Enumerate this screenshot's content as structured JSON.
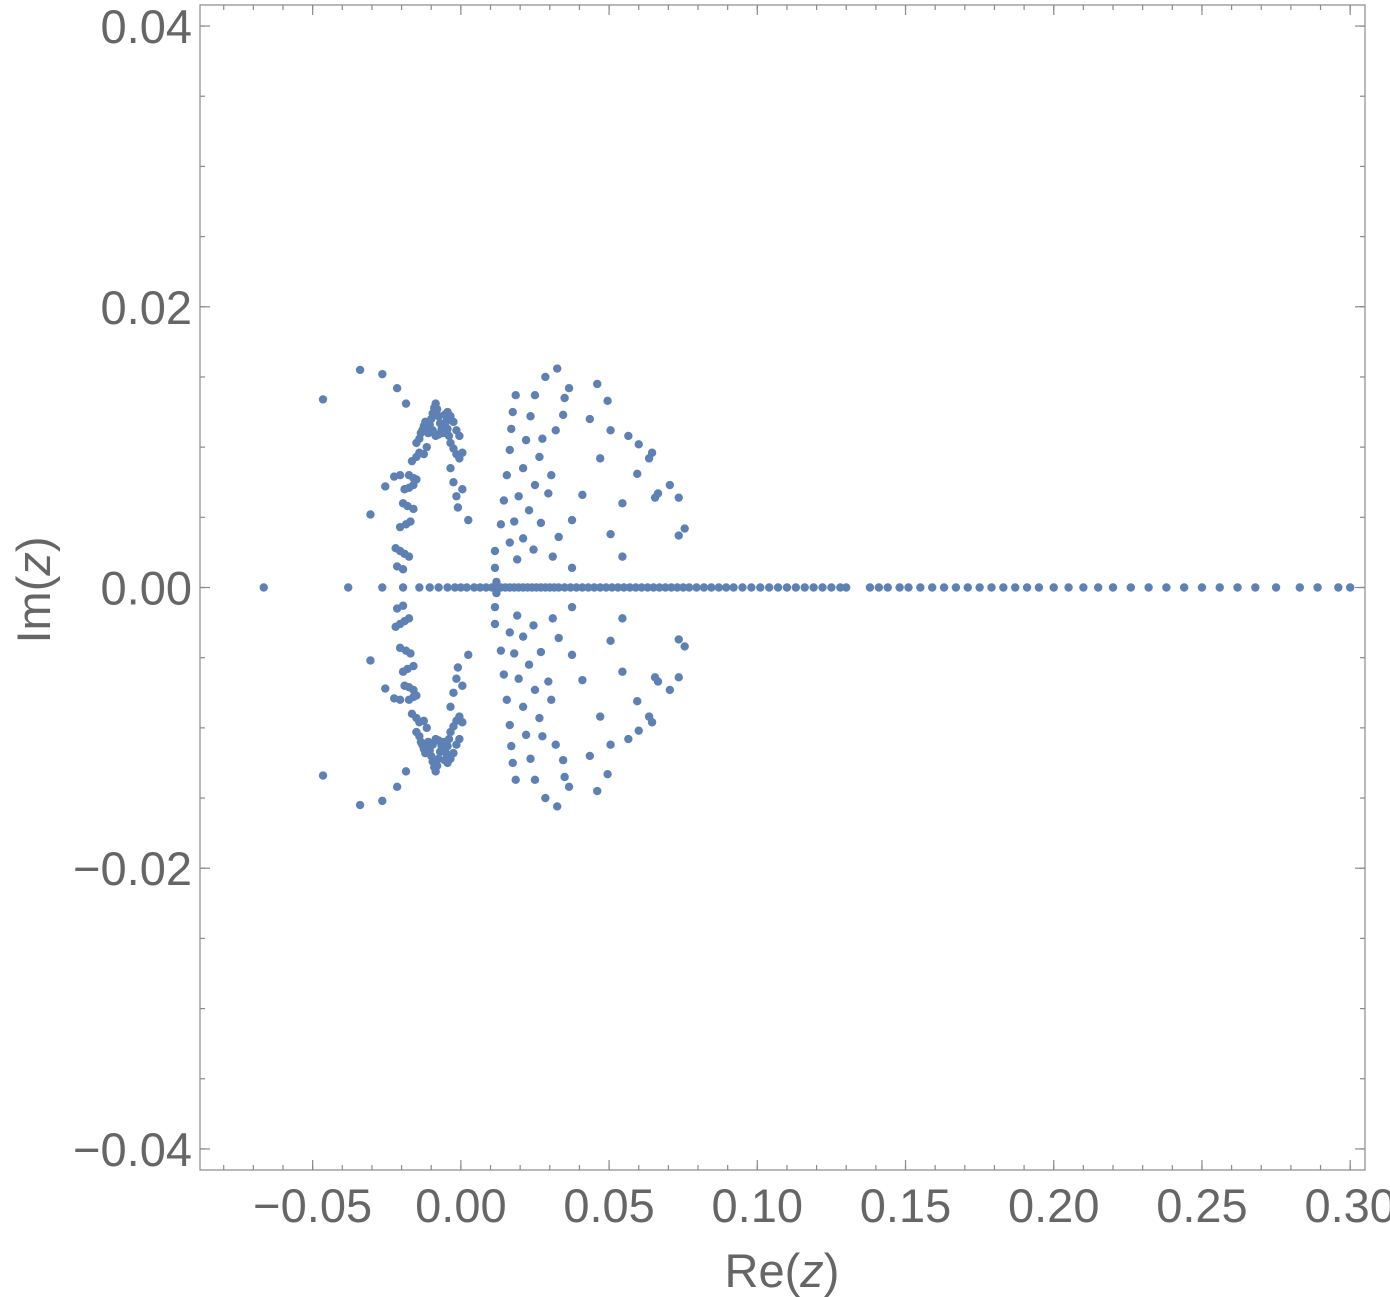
{
  "chart_data": {
    "type": "scatter",
    "xlabel_parts": [
      "Re(",
      "z",
      ")"
    ],
    "ylabel_parts": [
      "Im(",
      "z",
      ")"
    ],
    "xlim": [
      -0.088,
      0.305
    ],
    "ylim": [
      -0.0415,
      0.0415
    ],
    "x_ticks": [
      {
        "value": -0.05,
        "label": "−0.05"
      },
      {
        "value": 0.0,
        "label": "0.00"
      },
      {
        "value": 0.05,
        "label": "0.05"
      },
      {
        "value": 0.1,
        "label": "0.10"
      },
      {
        "value": 0.15,
        "label": "0.15"
      },
      {
        "value": 0.2,
        "label": "0.20"
      },
      {
        "value": 0.25,
        "label": "0.25"
      },
      {
        "value": 0.3,
        "label": "0.30"
      }
    ],
    "y_ticks": [
      {
        "value": -0.04,
        "label": "−0.04"
      },
      {
        "value": -0.02,
        "label": "−0.02"
      },
      {
        "value": 0.0,
        "label": "0.00"
      },
      {
        "value": 0.02,
        "label": "0.02"
      },
      {
        "value": 0.04,
        "label": "0.04"
      }
    ],
    "x_minor_step": 0.01,
    "y_minor_step": 0.005,
    "grid": false,
    "marker_color": "#5e81b5",
    "symmetric_about_real_axis": true,
    "real_axis_points": [
      -0.0665,
      -0.038,
      -0.0265,
      -0.0195,
      -0.014,
      -0.0105,
      -0.0075,
      -0.0045,
      -0.002,
      0.0,
      0.002,
      0.0045,
      0.0065,
      0.0085,
      0.0105,
      0.012,
      0.0135,
      0.015,
      0.0165,
      0.018,
      0.0195,
      0.021,
      0.0225,
      0.024,
      0.0255,
      0.027,
      0.0285,
      0.03,
      0.0315,
      0.033,
      0.035,
      0.037,
      0.039,
      0.041,
      0.043,
      0.045,
      0.047,
      0.049,
      0.051,
      0.053,
      0.055,
      0.057,
      0.059,
      0.061,
      0.063,
      0.065,
      0.067,
      0.069,
      0.071,
      0.073,
      0.075,
      0.077,
      0.0795,
      0.082,
      0.0845,
      0.087,
      0.0895,
      0.092,
      0.095,
      0.098,
      0.101,
      0.104,
      0.107,
      0.11,
      0.113,
      0.116,
      0.119,
      0.122,
      0.125,
      0.128,
      0.13,
      0.138,
      0.141,
      0.144,
      0.148,
      0.151,
      0.155,
      0.159,
      0.163,
      0.167,
      0.171,
      0.175,
      0.179,
      0.183,
      0.187,
      0.191,
      0.195,
      0.2,
      0.205,
      0.21,
      0.215,
      0.22,
      0.226,
      0.232,
      0.238,
      0.244,
      0.25,
      0.256,
      0.262,
      0.268,
      0.275,
      0.283,
      0.289,
      0.296,
      0.3
    ],
    "complex_points_upper": [
      [
        -0.0465,
        0.0134
      ],
      [
        -0.034,
        0.0155
      ],
      [
        -0.0265,
        0.0152
      ],
      [
        -0.0215,
        0.0142
      ],
      [
        -0.0185,
        0.0131
      ],
      [
        -0.0305,
        0.0052
      ],
      [
        -0.0255,
        0.0072
      ],
      [
        -0.0225,
        0.0079
      ],
      [
        -0.0205,
        0.008
      ],
      [
        -0.022,
        0.0028
      ],
      [
        -0.0205,
        0.0026
      ],
      [
        -0.019,
        0.0024
      ],
      [
        -0.0175,
        0.0022
      ],
      [
        -0.0215,
        0.0015
      ],
      [
        -0.0195,
        0.0013
      ],
      [
        -0.0205,
        0.0043
      ],
      [
        -0.0185,
        0.0045
      ],
      [
        -0.017,
        0.0047
      ],
      [
        -0.0195,
        0.006
      ],
      [
        -0.018,
        0.0058
      ],
      [
        -0.016,
        0.0056
      ],
      [
        -0.019,
        0.007
      ],
      [
        -0.0175,
        0.0071
      ],
      [
        -0.016,
        0.0073
      ],
      [
        -0.0175,
        0.008
      ],
      [
        -0.016,
        0.0078
      ],
      [
        -0.015,
        0.0077
      ],
      [
        -0.0165,
        0.009
      ],
      [
        -0.015,
        0.0093
      ],
      [
        -0.014,
        0.0096
      ],
      [
        -0.015,
        0.0103
      ],
      [
        -0.014,
        0.0106
      ],
      [
        -0.0135,
        0.011
      ],
      [
        -0.013,
        0.0112
      ],
      [
        -0.0125,
        0.0115
      ],
      [
        -0.012,
        0.0118
      ],
      [
        -0.0115,
        0.0113
      ],
      [
        -0.011,
        0.011
      ],
      [
        -0.0105,
        0.0116
      ],
      [
        -0.01,
        0.012
      ],
      [
        -0.0095,
        0.0124
      ],
      [
        -0.009,
        0.0128
      ],
      [
        -0.0085,
        0.0131
      ],
      [
        -0.008,
        0.0127
      ],
      [
        -0.0075,
        0.0122
      ],
      [
        -0.007,
        0.0117
      ],
      [
        -0.0065,
        0.0112
      ],
      [
        -0.006,
        0.011
      ],
      [
        -0.0055,
        0.0114
      ],
      [
        -0.005,
        0.0118
      ],
      [
        -0.0045,
        0.0113
      ],
      [
        -0.004,
        0.0108
      ],
      [
        -0.0035,
        0.0103
      ],
      [
        -0.0025,
        0.0099
      ],
      [
        -0.0015,
        0.0095
      ],
      [
        -0.0005,
        0.0092
      ],
      [
        0.0005,
        0.0096
      ],
      [
        -0.0095,
        0.0112
      ],
      [
        -0.0085,
        0.0108
      ],
      [
        -0.0075,
        0.0109
      ],
      [
        -0.0065,
        0.0113
      ],
      [
        -0.0055,
        0.0123
      ],
      [
        -0.0045,
        0.0125
      ],
      [
        -0.0035,
        0.0122
      ],
      [
        -0.0025,
        0.0118
      ],
      [
        -0.0015,
        0.0112
      ],
      [
        -0.0005,
        0.0108
      ],
      [
        -0.0035,
        0.0085
      ],
      [
        -0.0025,
        0.0075
      ],
      [
        -0.0015,
        0.0065
      ],
      [
        -0.001,
        0.0057
      ],
      [
        0.0005,
        0.007
      ],
      [
        0.0025,
        0.0048
      ],
      [
        -0.0115,
        0.01
      ],
      [
        -0.0125,
        0.0095
      ],
      [
        0.0115,
        0.0026
      ],
      [
        0.0115,
        0.0014
      ],
      [
        0.012,
        0.0004
      ],
      [
        0.0135,
        0.0045
      ],
      [
        0.0145,
        0.0062
      ],
      [
        0.0155,
        0.008
      ],
      [
        0.0165,
        0.0098
      ],
      [
        0.017,
        0.0113
      ],
      [
        0.0175,
        0.0125
      ],
      [
        0.0185,
        0.0137
      ],
      [
        0.0165,
        0.0032
      ],
      [
        0.018,
        0.0047
      ],
      [
        0.0195,
        0.0065
      ],
      [
        0.021,
        0.0085
      ],
      [
        0.022,
        0.0105
      ],
      [
        0.0235,
        0.0122
      ],
      [
        0.025,
        0.0137
      ],
      [
        0.019,
        0.002
      ],
      [
        0.021,
        0.0035
      ],
      [
        0.023,
        0.0055
      ],
      [
        0.025,
        0.0073
      ],
      [
        0.0265,
        0.0093
      ],
      [
        0.0275,
        0.0106
      ],
      [
        0.0285,
        0.015
      ],
      [
        0.0325,
        0.0156
      ],
      [
        0.0245,
        0.0027
      ],
      [
        0.027,
        0.0046
      ],
      [
        0.0295,
        0.0067
      ],
      [
        0.0305,
        0.008
      ],
      [
        0.032,
        0.0112
      ],
      [
        0.0345,
        0.0123
      ],
      [
        0.035,
        0.0135
      ],
      [
        0.0365,
        0.0142
      ],
      [
        0.031,
        0.0022
      ],
      [
        0.033,
        0.0036
      ],
      [
        0.0375,
        0.0048
      ],
      [
        0.041,
        0.0066
      ],
      [
        0.0435,
        0.012
      ],
      [
        0.046,
        0.0145
      ],
      [
        0.0495,
        0.0133
      ],
      [
        0.0375,
        0.0014
      ],
      [
        0.047,
        0.0092
      ],
      [
        0.0505,
        0.0112
      ],
      [
        0.0565,
        0.0108
      ],
      [
        0.06,
        0.0102
      ],
      [
        0.0635,
        0.0092
      ],
      [
        0.0545,
        0.0022
      ],
      [
        0.0505,
        0.0038
      ],
      [
        0.0545,
        0.006
      ],
      [
        0.0595,
        0.0081
      ],
      [
        0.0665,
        0.0067
      ],
      [
        0.0655,
        0.0064
      ],
      [
        0.0735,
        0.0037
      ],
      [
        0.0755,
        0.0042
      ],
      [
        0.0705,
        0.0073
      ],
      [
        0.0735,
        0.0064
      ],
      [
        0.0645,
        0.0096
      ]
    ]
  }
}
